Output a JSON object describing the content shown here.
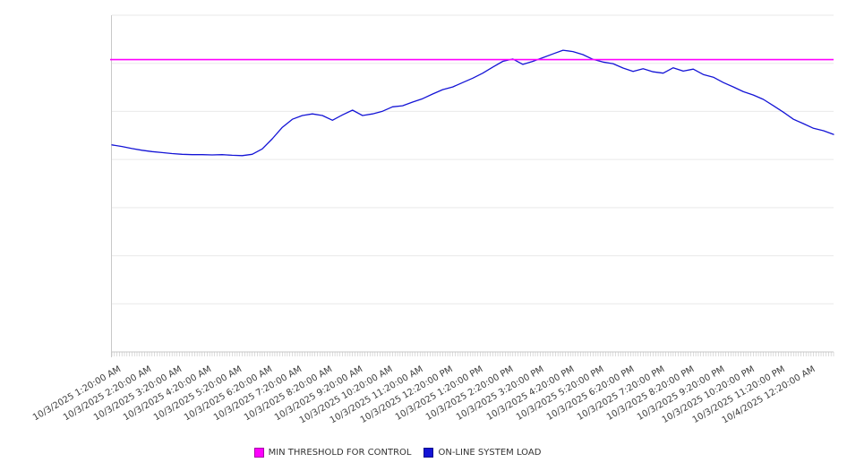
{
  "page": {
    "background": "#ffffff"
  },
  "chart_data": {
    "type": "line",
    "title": "",
    "xlabel": "",
    "ylabel": "",
    "x_axis": {
      "tick_labels": [
        "10/3/2025 1:20:00 AM",
        "10/3/2025 2:20:00 AM",
        "10/3/2025 3:20:00 AM",
        "10/3/2025 4:20:00 AM",
        "10/3/2025 5:20:00 AM",
        "10/3/2025 6:20:00 AM",
        "10/3/2025 7:20:00 AM",
        "10/3/2025 8:20:00 AM",
        "10/3/2025 9:20:00 AM",
        "10/3/2025 10:20:00 AM",
        "10/3/2025 11:20:00 AM",
        "10/3/2025 12:20:00 PM",
        "10/3/2025 1:20:00 PM",
        "10/3/2025 2:20:00 PM",
        "10/3/2025 3:20:00 PM",
        "10/3/2025 4:20:00 PM",
        "10/3/2025 5:20:00 PM",
        "10/3/2025 6:20:00 PM",
        "10/3/2025 7:20:00 PM",
        "10/3/2025 8:20:00 PM",
        "10/3/2025 9:20:00 PM",
        "10/3/2025 10:20:00 PM",
        "10/3/2025 11:20:00 PM",
        "10/4/2025 12:20:00 AM"
      ],
      "label_rotation_deg": -30,
      "minor_ticks_per_labeled_interval": 12
    },
    "y_axis": {
      "tick_labels_visible": false,
      "ylim": [
        0,
        100
      ],
      "gridline_count": 8,
      "grid": "horizontal"
    },
    "legend_position": "bottom-center",
    "series": [
      {
        "name": "MIN THRESHOLD FOR CONTROL",
        "type": "constant-threshold",
        "color": "#ff00ff",
        "value": 86.8
      },
      {
        "name": "ON-LINE SYSTEM LOAD",
        "type": "line",
        "color": "#1414d6",
        "times": [
          "12:20 AM",
          "12:40 AM",
          "1:00 AM",
          "1:20 AM",
          "1:40 AM",
          "2:00 AM",
          "2:20 AM",
          "2:40 AM",
          "3:00 AM",
          "3:20 AM",
          "3:40 AM",
          "4:00 AM",
          "4:20 AM",
          "4:40 AM",
          "5:00 AM",
          "5:20 AM",
          "5:40 AM",
          "6:00 AM",
          "6:20 AM",
          "6:40 AM",
          "7:00 AM",
          "7:20 AM",
          "7:40 AM",
          "8:00 AM",
          "8:20 AM",
          "8:40 AM",
          "9:00 AM",
          "9:20 AM",
          "9:40 AM",
          "10:00 AM",
          "10:20 AM",
          "10:40 AM",
          "11:00 AM",
          "11:20 AM",
          "11:40 AM",
          "12:00 PM",
          "12:20 PM",
          "12:40 PM",
          "1:00 PM",
          "1:20 PM",
          "1:40 PM",
          "2:00 PM",
          "2:20 PM",
          "2:40 PM",
          "3:00 PM",
          "3:20 PM",
          "3:40 PM",
          "4:00 PM",
          "4:20 PM",
          "4:40 PM",
          "5:00 PM",
          "5:20 PM",
          "5:40 PM",
          "6:00 PM",
          "6:20 PM",
          "6:40 PM",
          "7:00 PM",
          "7:20 PM",
          "7:40 PM",
          "8:00 PM",
          "8:20 PM",
          "8:40 PM",
          "9:00 PM",
          "9:20 PM",
          "9:40 PM",
          "10:00 PM",
          "10:20 PM",
          "10:40 PM",
          "11:00 PM",
          "11:20 PM",
          "11:40 PM",
          "12:00 AM",
          "12:20 AM"
        ],
        "values": [
          61.5,
          61.0,
          60.4,
          59.9,
          59.5,
          59.2,
          58.9,
          58.7,
          58.6,
          58.6,
          58.5,
          58.6,
          58.4,
          58.3,
          58.7,
          60.3,
          63.3,
          66.7,
          69.1,
          70.2,
          70.7,
          70.2,
          68.8,
          70.4,
          71.8,
          70.2,
          70.7,
          71.5,
          72.8,
          73.1,
          74.2,
          75.2,
          76.6,
          77.9,
          78.7,
          80.0,
          81.3,
          82.8,
          84.6,
          86.3,
          87.0,
          85.4,
          86.3,
          87.4,
          88.5,
          89.6,
          89.2,
          88.3,
          86.9,
          86.1,
          85.6,
          84.3,
          83.3,
          84.1,
          83.2,
          82.8,
          84.4,
          83.4,
          84.0,
          82.4,
          81.6,
          80.0,
          78.7,
          77.3,
          76.3,
          75.0,
          73.1,
          71.2,
          69.1,
          67.8,
          66.4,
          65.7,
          64.6
        ]
      }
    ],
    "colors": {
      "gridline": "#e9e9e9",
      "axis_line": "#c9c9c9",
      "minor_tick": "#c4c4c4",
      "tick_label_text": "#3c3c3c",
      "legend_text": "#333333"
    }
  }
}
